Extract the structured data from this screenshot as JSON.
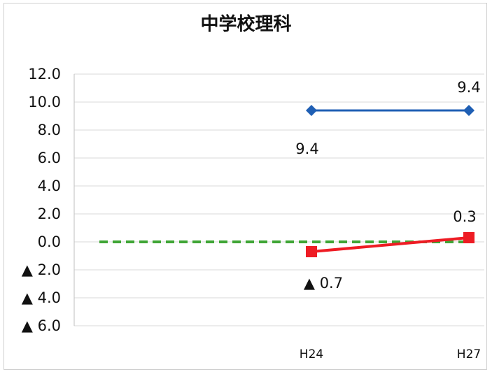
{
  "chart_data": {
    "type": "line",
    "title": "中学校理科",
    "categories": [
      "H24",
      "H27"
    ],
    "ylim": [
      -6,
      12
    ],
    "yticks": [
      {
        "value": 12,
        "label": "12.0"
      },
      {
        "value": 10,
        "label": "10.0"
      },
      {
        "value": 8,
        "label": "8.0"
      },
      {
        "value": 6,
        "label": "6.0"
      },
      {
        "value": 4,
        "label": "4.0"
      },
      {
        "value": 2,
        "label": "2.0"
      },
      {
        "value": 0,
        "label": "0.0"
      },
      {
        "value": -2,
        "label": "▲ 2.0"
      },
      {
        "value": -4,
        "label": "▲ 4.0"
      },
      {
        "value": -6,
        "label": "▲ 6.0"
      }
    ],
    "grid": true,
    "series": [
      {
        "values": [
          9.4,
          9.4
        ],
        "color": "#1f5fb4",
        "marker": "diamond",
        "data_labels": [
          "9.4",
          "9.4"
        ]
      },
      {
        "values": [
          -0.7,
          0.3
        ],
        "color": "#ee1c24",
        "marker": "square",
        "data_labels": [
          "▲ 0.7",
          "0.3"
        ]
      },
      {
        "values": [
          0,
          0
        ],
        "color": "#3fa535",
        "style": "dashed",
        "extends_full_width": true
      }
    ]
  }
}
